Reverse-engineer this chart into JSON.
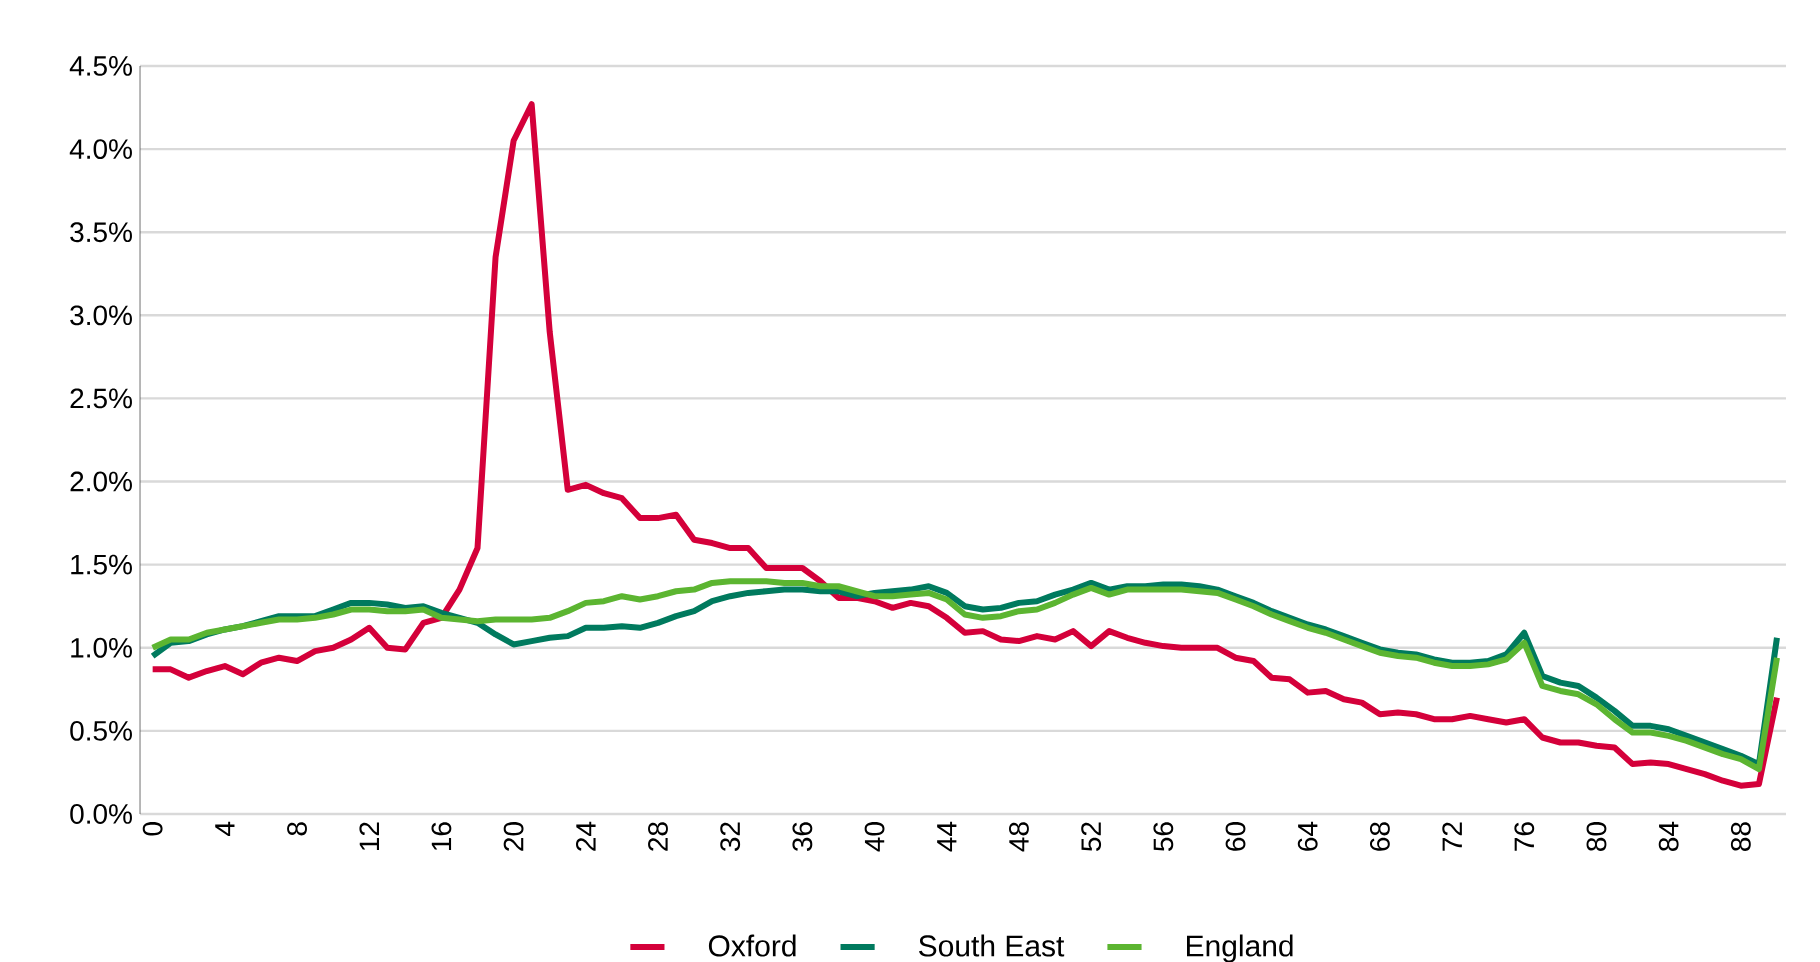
{
  "chart_data": {
    "type": "line",
    "x": [
      0,
      1,
      2,
      3,
      4,
      5,
      6,
      7,
      8,
      9,
      10,
      11,
      12,
      13,
      14,
      15,
      16,
      17,
      18,
      19,
      20,
      21,
      22,
      23,
      24,
      25,
      26,
      27,
      28,
      29,
      30,
      31,
      32,
      33,
      34,
      35,
      36,
      37,
      38,
      39,
      40,
      41,
      42,
      43,
      44,
      45,
      46,
      47,
      48,
      49,
      50,
      51,
      52,
      53,
      54,
      55,
      56,
      57,
      58,
      59,
      60,
      61,
      62,
      63,
      64,
      65,
      66,
      67,
      68,
      69,
      70,
      71,
      72,
      73,
      74,
      75,
      76,
      77,
      78,
      79,
      80,
      81,
      82,
      83,
      84,
      85,
      86,
      87,
      88,
      89,
      90
    ],
    "series": [
      {
        "name": "Oxford",
        "color": "#d4003a",
        "values": [
          0.87,
          0.87,
          0.82,
          0.86,
          0.89,
          0.84,
          0.91,
          0.94,
          0.92,
          0.98,
          1.0,
          1.05,
          1.12,
          1.0,
          0.99,
          1.15,
          1.18,
          1.35,
          1.6,
          3.35,
          4.05,
          4.27,
          2.9,
          1.95,
          1.98,
          1.93,
          1.9,
          1.78,
          1.78,
          1.8,
          1.65,
          1.63,
          1.6,
          1.6,
          1.48,
          1.48,
          1.48,
          1.4,
          1.3,
          1.3,
          1.28,
          1.24,
          1.27,
          1.25,
          1.18,
          1.09,
          1.1,
          1.05,
          1.04,
          1.07,
          1.05,
          1.1,
          1.01,
          1.1,
          1.06,
          1.03,
          1.01,
          1.0,
          1.0,
          1.0,
          0.94,
          0.92,
          0.82,
          0.81,
          0.73,
          0.74,
          0.69,
          0.67,
          0.6,
          0.61,
          0.6,
          0.57,
          0.57,
          0.59,
          0.57,
          0.55,
          0.57,
          0.46,
          0.43,
          0.43,
          0.41,
          0.4,
          0.3,
          0.31,
          0.3,
          0.27,
          0.24,
          0.2,
          0.17,
          0.18,
          0.7
        ]
      },
      {
        "name": "South East",
        "color": "#007a5e",
        "values": [
          0.95,
          1.03,
          1.04,
          1.08,
          1.11,
          1.13,
          1.16,
          1.19,
          1.19,
          1.19,
          1.23,
          1.27,
          1.27,
          1.26,
          1.24,
          1.25,
          1.21,
          1.18,
          1.15,
          1.08,
          1.02,
          1.04,
          1.06,
          1.07,
          1.12,
          1.12,
          1.13,
          1.12,
          1.15,
          1.19,
          1.22,
          1.28,
          1.31,
          1.33,
          1.34,
          1.35,
          1.35,
          1.34,
          1.34,
          1.31,
          1.33,
          1.34,
          1.35,
          1.37,
          1.33,
          1.25,
          1.23,
          1.24,
          1.27,
          1.28,
          1.32,
          1.35,
          1.39,
          1.35,
          1.37,
          1.37,
          1.38,
          1.38,
          1.37,
          1.35,
          1.31,
          1.27,
          1.22,
          1.18,
          1.14,
          1.11,
          1.07,
          1.03,
          0.99,
          0.97,
          0.96,
          0.93,
          0.91,
          0.91,
          0.92,
          0.96,
          1.09,
          0.83,
          0.79,
          0.77,
          0.7,
          0.62,
          0.53,
          0.53,
          0.51,
          0.47,
          0.43,
          0.39,
          0.35,
          0.3,
          1.06
        ]
      },
      {
        "name": "England",
        "color": "#5cb531",
        "values": [
          1.0,
          1.05,
          1.05,
          1.09,
          1.11,
          1.13,
          1.15,
          1.17,
          1.17,
          1.18,
          1.2,
          1.23,
          1.23,
          1.22,
          1.22,
          1.23,
          1.18,
          1.17,
          1.16,
          1.17,
          1.17,
          1.17,
          1.18,
          1.22,
          1.27,
          1.28,
          1.31,
          1.29,
          1.31,
          1.34,
          1.35,
          1.39,
          1.4,
          1.4,
          1.4,
          1.39,
          1.39,
          1.37,
          1.37,
          1.34,
          1.31,
          1.31,
          1.32,
          1.33,
          1.29,
          1.2,
          1.18,
          1.19,
          1.22,
          1.23,
          1.27,
          1.32,
          1.36,
          1.32,
          1.35,
          1.35,
          1.35,
          1.35,
          1.34,
          1.33,
          1.29,
          1.25,
          1.2,
          1.16,
          1.12,
          1.09,
          1.05,
          1.01,
          0.97,
          0.95,
          0.94,
          0.91,
          0.89,
          0.89,
          0.9,
          0.93,
          1.03,
          0.77,
          0.74,
          0.72,
          0.66,
          0.57,
          0.49,
          0.49,
          0.47,
          0.44,
          0.4,
          0.36,
          0.33,
          0.27,
          0.94
        ]
      }
    ],
    "xlim": [
      -0.7,
      90.5
    ],
    "xticks": [
      0,
      4,
      8,
      12,
      16,
      20,
      24,
      28,
      32,
      36,
      40,
      44,
      48,
      52,
      56,
      60,
      64,
      68,
      72,
      76,
      80,
      84,
      88
    ],
    "ylim": [
      0,
      4.5
    ],
    "yticks": [
      {
        "value": 0,
        "label": "0.0%"
      },
      {
        "value": 0.5,
        "label": "0.5%"
      },
      {
        "value": 1,
        "label": "1.0%"
      },
      {
        "value": 1.5,
        "label": "1.5%"
      },
      {
        "value": 2,
        "label": "2.0%"
      },
      {
        "value": 2.5,
        "label": "2.5%"
      },
      {
        "value": 3,
        "label": "3.0%"
      },
      {
        "value": 3.5,
        "label": "3.5%"
      },
      {
        "value": 4,
        "label": "4.0%"
      },
      {
        "value": 4.5,
        "label": "4.5%"
      }
    ],
    "grid": "y",
    "legend": "bottom",
    "marker": "none",
    "line_style": "solid"
  }
}
